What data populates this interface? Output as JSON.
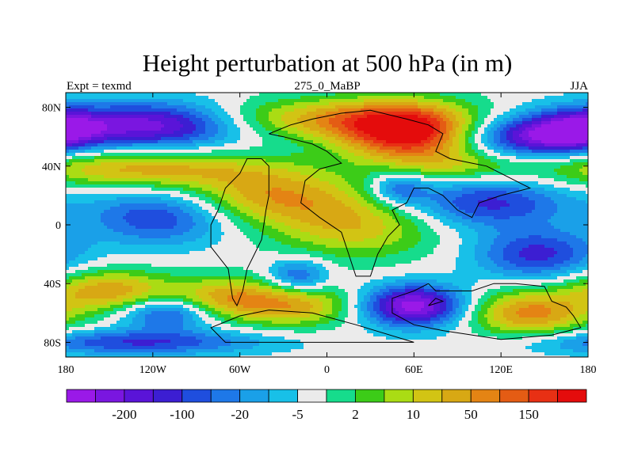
{
  "chart_data": {
    "type": "heatmap",
    "title": "Height perturbation at 500 hPa (in m)",
    "left_label": "Expt = texmd",
    "center_label": "275_0_MaBP",
    "right_label": "JJA",
    "xlim": [
      -180,
      180
    ],
    "ylim": [
      -90,
      90
    ],
    "x_ticks": [
      {
        "value": -180,
        "label": "180"
      },
      {
        "value": -120,
        "label": "120W"
      },
      {
        "value": -60,
        "label": "60W"
      },
      {
        "value": 0,
        "label": "0"
      },
      {
        "value": 60,
        "label": "60E"
      },
      {
        "value": 120,
        "label": "120E"
      },
      {
        "value": 180,
        "label": "180"
      }
    ],
    "y_ticks": [
      {
        "value": 80,
        "label": "80N"
      },
      {
        "value": 40,
        "label": "40N"
      },
      {
        "value": 0,
        "label": "0"
      },
      {
        "value": -40,
        "label": "40S"
      },
      {
        "value": -80,
        "label": "80S"
      }
    ],
    "colorbar": {
      "colors": [
        "#9a19e8",
        "#7a16e0",
        "#5a14d8",
        "#3c1ed2",
        "#1f4ede",
        "#1e78e8",
        "#1aa0e8",
        "#18c0e8",
        "#ebebeb",
        "#16dc8c",
        "#3ccc18",
        "#aadc14",
        "#d2c414",
        "#d8a814",
        "#e48414",
        "#e45c14",
        "#e83014",
        "#e40c0c"
      ],
      "labels": [
        {
          "boundary": 2,
          "label": "-200"
        },
        {
          "boundary": 4,
          "label": "-100"
        },
        {
          "boundary": 6,
          "label": "-20"
        },
        {
          "boundary": 8,
          "label": "-5"
        },
        {
          "boundary": 10,
          "label": "2"
        },
        {
          "boundary": 12,
          "label": "10"
        },
        {
          "boundary": 14,
          "label": "50"
        },
        {
          "boundary": 16,
          "label": "150"
        }
      ]
    },
    "field_features": [
      {
        "type": "high",
        "lon": 55,
        "lat": 62,
        "amp": 5.2,
        "slon": 32,
        "slat": 14
      },
      {
        "type": "high",
        "lon": 0,
        "lat": 72,
        "amp": 3.0,
        "slon": 60,
        "slat": 10
      },
      {
        "type": "low",
        "lon": -120,
        "lat": 68,
        "amp": -4.5,
        "slon": 45,
        "slat": 11
      },
      {
        "type": "low",
        "lon": 140,
        "lat": 60,
        "amp": -3.8,
        "slon": 30,
        "slat": 10
      },
      {
        "type": "low",
        "lon": 175,
        "lat": 65,
        "amp": -3.2,
        "slon": 22,
        "slat": 10
      },
      {
        "type": "high",
        "lon": -130,
        "lat": 38,
        "amp": 3.0,
        "slon": 60,
        "slat": 9
      },
      {
        "type": "high",
        "lon": -40,
        "lat": 20,
        "amp": 3.0,
        "slon": 40,
        "slat": 14
      },
      {
        "type": "high",
        "lon": 20,
        "lat": 0,
        "amp": 2.6,
        "slon": 40,
        "slat": 16
      },
      {
        "type": "low",
        "lon": -115,
        "lat": 5,
        "amp": -2.8,
        "slon": 35,
        "slat": 13
      },
      {
        "type": "low",
        "lon": -20,
        "lat": -35,
        "amp": -2.5,
        "slon": 15,
        "slat": 8
      },
      {
        "type": "low",
        "lon": 110,
        "lat": 15,
        "amp": -3.0,
        "slon": 40,
        "slat": 12
      },
      {
        "type": "high",
        "lon": 90,
        "lat": 40,
        "amp": 1.5,
        "slon": 30,
        "slat": 8
      },
      {
        "type": "low",
        "lon": 60,
        "lat": -55,
        "amp": -5.0,
        "slon": 25,
        "slat": 10
      },
      {
        "type": "low",
        "lon": -110,
        "lat": -60,
        "amp": -3.0,
        "slon": 22,
        "slat": 8
      },
      {
        "type": "high",
        "lon": -150,
        "lat": -45,
        "amp": 3.2,
        "slon": 30,
        "slat": 10
      },
      {
        "type": "high",
        "lon": -70,
        "lat": -50,
        "amp": 3.0,
        "slon": 28,
        "slat": 10
      },
      {
        "type": "high",
        "lon": -20,
        "lat": -55,
        "amp": 2.8,
        "slon": 28,
        "slat": 10
      },
      {
        "type": "high",
        "lon": 140,
        "lat": -60,
        "amp": 3.6,
        "slon": 30,
        "slat": 11
      },
      {
        "type": "low",
        "lon": -130,
        "lat": -80,
        "amp": -2.8,
        "slon": 60,
        "slat": 6
      },
      {
        "type": "low",
        "lon": 50,
        "lat": 25,
        "amp": -2.2,
        "slon": 14,
        "slat": 8
      },
      {
        "type": "low",
        "lon": 145,
        "lat": -20,
        "amp": -3.0,
        "slon": 30,
        "slat": 12
      }
    ],
    "continent_outlines": [
      [
        [
          -40,
          62
        ],
        [
          -25,
          68
        ],
        [
          -10,
          72
        ],
        [
          10,
          76
        ],
        [
          30,
          78
        ],
        [
          55,
          72
        ],
        [
          70,
          68
        ],
        [
          80,
          62
        ],
        [
          75,
          50
        ],
        [
          85,
          45
        ],
        [
          100,
          42
        ],
        [
          110,
          40
        ],
        [
          130,
          30
        ],
        [
          140,
          25
        ],
        [
          120,
          20
        ],
        [
          105,
          15
        ],
        [
          100,
          5
        ],
        [
          90,
          10
        ],
        [
          80,
          20
        ],
        [
          70,
          25
        ],
        [
          60,
          25
        ],
        [
          55,
          15
        ],
        [
          45,
          10
        ],
        [
          50,
          0
        ],
        [
          42,
          -8
        ],
        [
          35,
          -20
        ],
        [
          30,
          -35
        ],
        [
          20,
          -35
        ],
        [
          15,
          -20
        ],
        [
          10,
          -5
        ],
        [
          -5,
          5
        ],
        [
          -18,
          15
        ],
        [
          -15,
          30
        ],
        [
          -5,
          38
        ],
        [
          10,
          42
        ],
        [
          0,
          50
        ],
        [
          -10,
          55
        ],
        [
          -30,
          60
        ],
        [
          -40,
          62
        ]
      ],
      [
        [
          -45,
          45
        ],
        [
          -40,
          40
        ],
        [
          -40,
          20
        ],
        [
          -42,
          10
        ],
        [
          -45,
          -10
        ],
        [
          -50,
          -20
        ],
        [
          -55,
          -30
        ],
        [
          -58,
          -45
        ],
        [
          -62,
          -55
        ],
        [
          -65,
          -50
        ],
        [
          -68,
          -30
        ],
        [
          -80,
          -15
        ],
        [
          -80,
          0
        ],
        [
          -75,
          10
        ],
        [
          -70,
          25
        ],
        [
          -60,
          35
        ],
        [
          -55,
          45
        ],
        [
          -45,
          45
        ]
      ],
      [
        [
          70,
          -40
        ],
        [
          75,
          -45
        ],
        [
          100,
          -45
        ],
        [
          115,
          -40
        ],
        [
          130,
          -40
        ],
        [
          150,
          -42
        ],
        [
          155,
          -52
        ],
        [
          165,
          -56
        ],
        [
          170,
          -62
        ],
        [
          175,
          -70
        ],
        [
          155,
          -75
        ],
        [
          120,
          -78
        ],
        [
          80,
          -72
        ],
        [
          60,
          -68
        ],
        [
          45,
          -60
        ],
        [
          45,
          -50
        ],
        [
          60,
          -45
        ],
        [
          70,
          -40
        ]
      ],
      [
        [
          -60,
          -62
        ],
        [
          -40,
          -58
        ],
        [
          -10,
          -60
        ],
        [
          20,
          -68
        ],
        [
          60,
          -80
        ],
        [
          -70,
          -80
        ],
        [
          -80,
          -70
        ],
        [
          -60,
          -62
        ]
      ],
      [
        [
          70,
          -55
        ],
        [
          80,
          -52
        ],
        [
          75,
          -50
        ],
        [
          70,
          -55
        ]
      ]
    ]
  }
}
